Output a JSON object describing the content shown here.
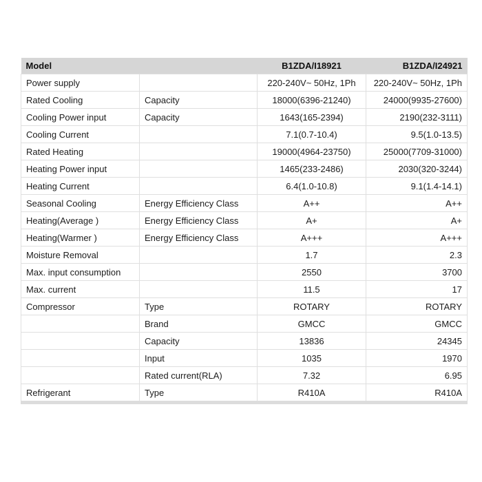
{
  "table": {
    "header": {
      "col1": "Model",
      "col2": "",
      "col3": "B1ZDA/I18921",
      "col4": "B1ZDA/I24921"
    },
    "rows": [
      {
        "c1": "Power supply",
        "c2": "",
        "c3": "220-240V~ 50Hz, 1Ph",
        "c4": "220-240V~ 50Hz, 1Ph"
      },
      {
        "c1": "Rated Cooling",
        "c2": "Capacity",
        "c3": "18000(6396-21240)",
        "c4": "24000(9935-27600)"
      },
      {
        "c1": "Cooling Power input",
        "c2": "Capacity",
        "c3": "1643(165-2394)",
        "c4": "2190(232-3111)"
      },
      {
        "c1": "Cooling Current",
        "c2": "",
        "c3": "7.1(0.7-10.4)",
        "c4": "9.5(1.0-13.5)"
      },
      {
        "c1": "Rated Heating",
        "c2": "",
        "c3": "19000(4964-23750)",
        "c4": "25000(7709-31000)"
      },
      {
        "c1": "Heating Power input",
        "c2": "",
        "c3": "1465(233-2486)",
        "c4": "2030(320-3244)"
      },
      {
        "c1": "Heating Current",
        "c2": "",
        "c3": "6.4(1.0-10.8)",
        "c4": "9.1(1.4-14.1)"
      },
      {
        "c1": "Seasonal Cooling",
        "c2": "Energy Efficiency Class",
        "c3": "A++",
        "c4": "A++"
      },
      {
        "c1": "Heating(Average )",
        "c2": "Energy Efficiency Class",
        "c3": "A+",
        "c4": "A+"
      },
      {
        "c1": "Heating(Warmer )",
        "c2": "Energy Efficiency Class",
        "c3": "A+++",
        "c4": "A+++"
      },
      {
        "c1": "Moisture Removal",
        "c2": "",
        "c3": "1.7",
        "c4": "2.3"
      },
      {
        "c1": "Max. input consumption",
        "c2": "",
        "c3": "2550",
        "c4": "3700"
      },
      {
        "c1": "Max. current",
        "c2": "",
        "c3": "11.5",
        "c4": "17"
      },
      {
        "c1": "Compressor",
        "c2": "Type",
        "c3": "ROTARY",
        "c4": "ROTARY"
      },
      {
        "c1": "",
        "c2": "Brand",
        "c3": "GMCC",
        "c4": "GMCC"
      },
      {
        "c1": "",
        "c2": "Capacity",
        "c3": "13836",
        "c4": "24345"
      },
      {
        "c1": "",
        "c2": "Input",
        "c3": "1035",
        "c4": "1970"
      },
      {
        "c1": "",
        "c2": "Rated current(RLA)",
        "c3": "7.32",
        "c4": "6.95"
      },
      {
        "c1": "Refrigerant",
        "c2": "Type",
        "c3": "R410A",
        "c4": "R410A"
      }
    ],
    "colors": {
      "header_background": "#d6d6d6",
      "grid_border": "#dfdfdf",
      "bottom_bar": "#dcdcdc",
      "text": "#1c1c1c",
      "page_background": "#ffffff"
    }
  }
}
